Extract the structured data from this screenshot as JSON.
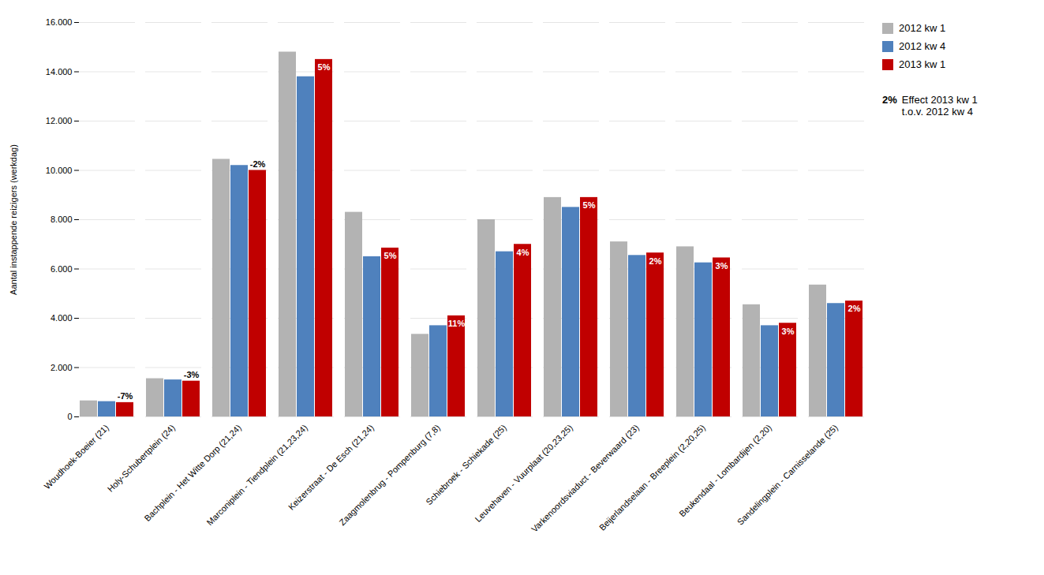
{
  "chart_data": {
    "type": "bar",
    "categories": [
      "Woudhoek-Boeier (21)",
      "Holy-Schubertplein (24)",
      "Bachplein - Het Witte Dorp (21,24)",
      "Marconiplein - Tiendplein (21,23,24)",
      "Keizerstraat - De Esch (21,24)",
      "Zaagmolenbrug - Pompenburg (7,8)",
      "Schiebroek - Schiekade (25)",
      "Leuvehaven - Vuurplaat (20,23,25)",
      "Varkenoordsviaduct - Beverwaard (23)",
      "Beijerlandselaan - Breeplein (2,20,25)",
      "Beukendaal - Lombardijen (2,20)",
      "Sandelingplein - Carnisselande (25)"
    ],
    "series": [
      {
        "name": "2012 kw 1",
        "color": "#b3b3b3",
        "values": [
          650,
          1550,
          10450,
          14800,
          8300,
          3350,
          8000,
          8900,
          7100,
          6900,
          4550,
          5350
        ]
      },
      {
        "name": "2012 kw 4",
        "color": "#4f81bd",
        "values": [
          620,
          1500,
          10200,
          13800,
          6500,
          3700,
          6700,
          8500,
          6550,
          6250,
          3700,
          4600
        ]
      },
      {
        "name": "2013 kw 1",
        "color": "#c00000",
        "values": [
          580,
          1450,
          10000,
          14500,
          6850,
          4100,
          7000,
          8900,
          6650,
          6450,
          3800,
          4700
        ],
        "effects": [
          -7,
          -3,
          -2,
          5,
          5,
          11,
          4,
          5,
          2,
          3,
          3,
          2
        ],
        "effect_labels": [
          "-7%",
          "-3%",
          "-2%",
          "5%",
          "5%",
          "11%",
          "4%",
          "5%",
          "2%",
          "3%",
          "3%",
          "2%"
        ]
      }
    ],
    "ylabel": "Aantal instappende reizigers (werkdag)",
    "ylim": [
      0,
      16000
    ],
    "yticks": [
      0,
      {
        "value": 2000,
        "label": "2.000"
      },
      {
        "value": 4000,
        "label": "4.000"
      },
      {
        "value": 6000,
        "label": "6.000"
      },
      {
        "value": 8000,
        "label": "8.000"
      },
      {
        "value": 10000,
        "label": "10.000"
      },
      {
        "value": 12000,
        "label": "12.000"
      },
      {
        "value": 14000,
        "label": "14.000"
      },
      {
        "value": 16000,
        "label": "16.000"
      }
    ],
    "grid": true,
    "legend": "upper right",
    "annotations": [
      "2%",
      "Effect 2013 kw 1\nt.o.v. 2012 kw 4"
    ]
  }
}
